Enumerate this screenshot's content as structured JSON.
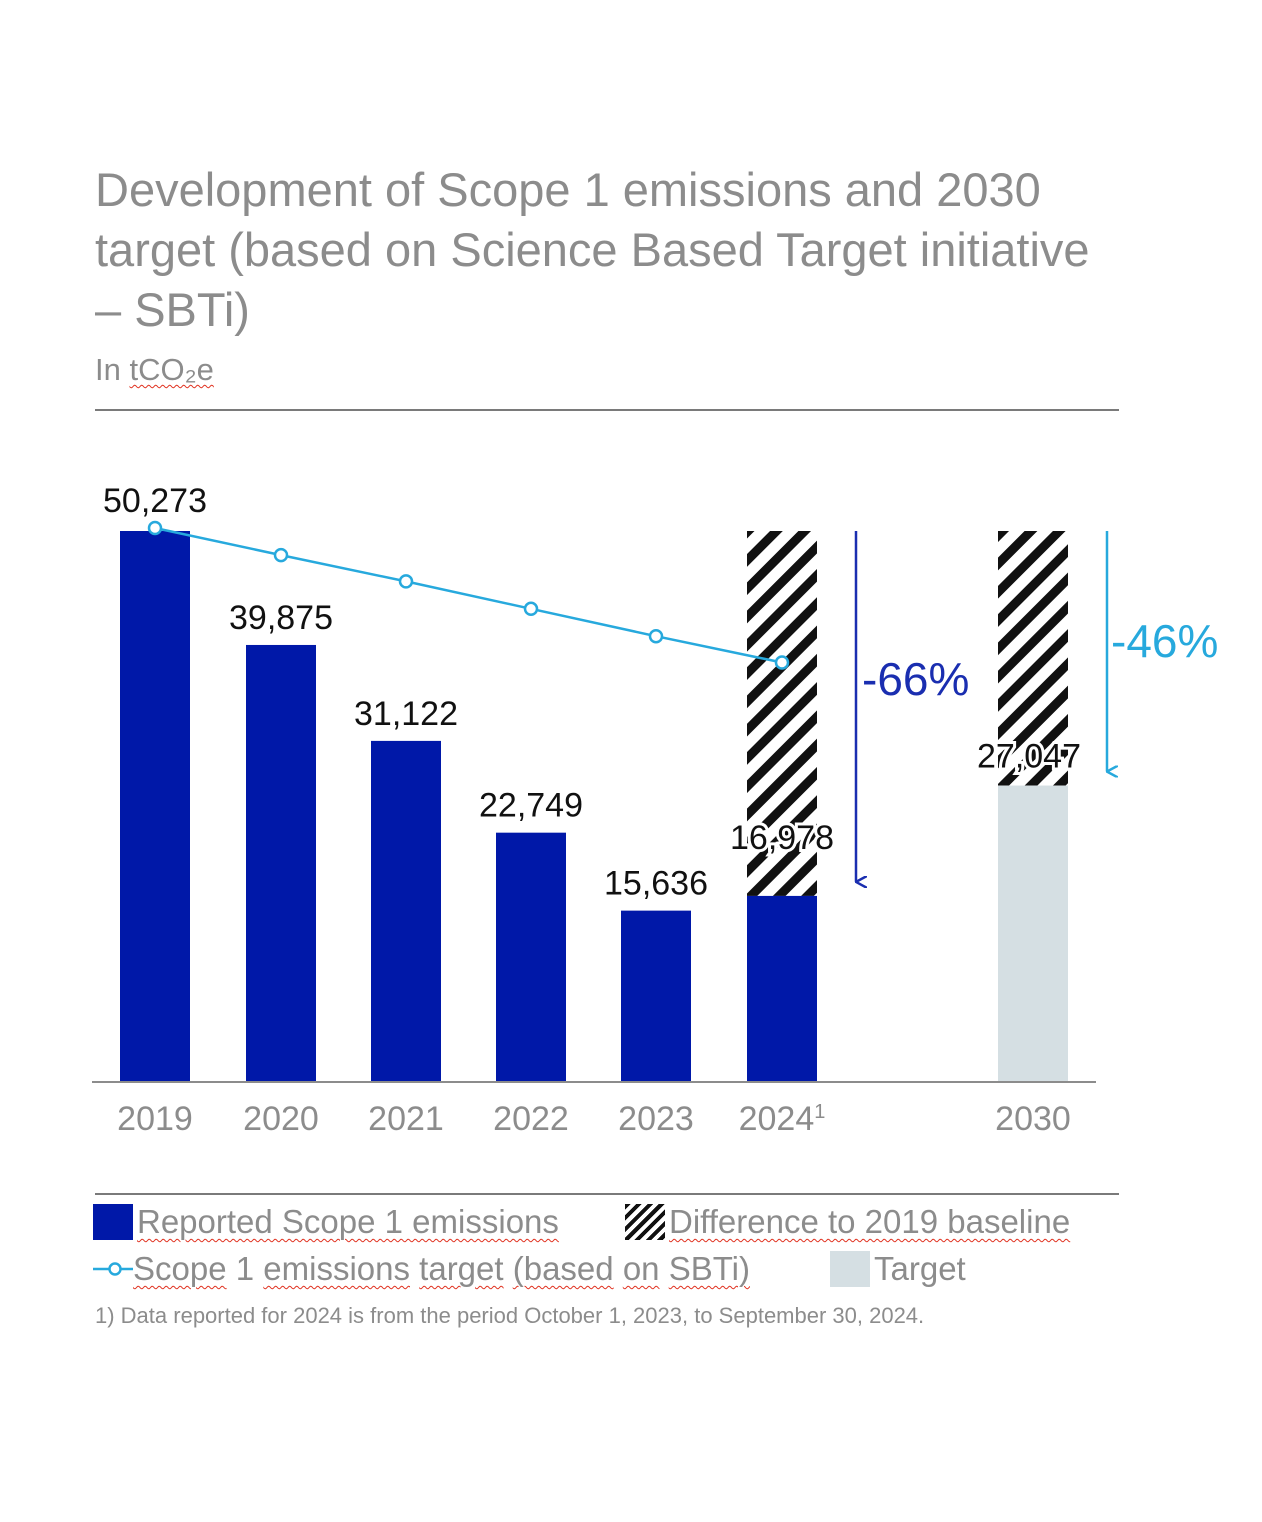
{
  "header": {
    "title": "Development of Scope 1 emissions and 2030 target (based on Science Based Target initiative – SBTi)",
    "unit_prefix": "In ",
    "unit_chem": "tCO₂e"
  },
  "chart_data": {
    "type": "bar",
    "title": "Development of Scope 1 emissions and 2030 target (based on Science Based Target initiative – SBTi)",
    "ylabel": "In tCO₂e",
    "ylim": [
      0,
      50273
    ],
    "categories": [
      "2019",
      "2020",
      "2021",
      "2022",
      "2023",
      "2024",
      "2030"
    ],
    "category_superscripts": [
      "",
      "",
      "",
      "",
      "",
      "1",
      ""
    ],
    "series": [
      {
        "name": "Reported Scope 1 emissions",
        "values": [
          50273,
          39875,
          31122,
          22749,
          15636,
          16978,
          null
        ],
        "labels": [
          "50,273",
          "39,875",
          "31,122",
          "22,749",
          "15,636",
          "16,978",
          ""
        ]
      },
      {
        "name": "Difference to 2019 baseline",
        "stacked_from": [
          null,
          null,
          null,
          null,
          null,
          16978,
          27047
        ],
        "stacked_to": [
          null,
          null,
          null,
          null,
          null,
          50273,
          50273
        ]
      },
      {
        "name": "Target",
        "values": [
          null,
          null,
          null,
          null,
          null,
          null,
          27047
        ],
        "labels": [
          "",
          "",
          "",
          "",
          "",
          "",
          "27,047"
        ]
      },
      {
        "name": "Scope 1 emissions target (based on SBTi)",
        "type": "line",
        "values": [
          50273,
          47800,
          45400,
          42900,
          40400,
          38000,
          null
        ]
      }
    ],
    "annotations": [
      {
        "text": "-66%",
        "from_category": "2024",
        "from_value": 50273,
        "to_value": 16978,
        "color": "#1a2eb0"
      },
      {
        "text": "-46%",
        "from_category": "2030",
        "from_value": 50273,
        "to_value": 27047,
        "color": "#27a9dd"
      }
    ],
    "colors": {
      "reported": "#0018a8",
      "target_bar": "#d5dfe3",
      "target_line": "#27a9dd",
      "hatch": "#111111",
      "axis_label": "#8c8c8c",
      "value_label": "#111111"
    }
  },
  "legend": {
    "reported": "Reported Scope 1 emissions",
    "difference": "Difference to 2019 baseline",
    "target_line_words": [
      "Scope",
      "1",
      "emissions",
      "target",
      "(based",
      "on",
      "SBTi)"
    ],
    "target": "Target"
  },
  "footnote": "1) Data reported for 2024 is from the period October 1, 2023, to September 30, 2024."
}
